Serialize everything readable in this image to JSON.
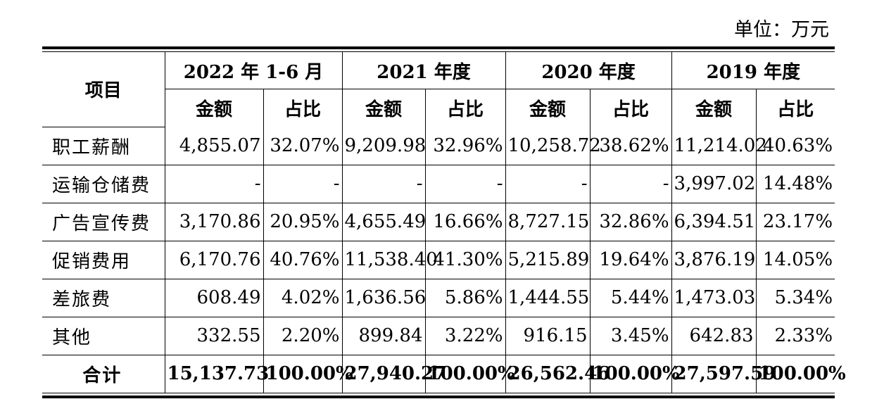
{
  "unit_label": "单位：万元",
  "header": {
    "item_label": "项目",
    "periods": [
      "2022 年 1-6 月",
      "2021 年度",
      "2020 年度",
      "2019 年度"
    ],
    "amount_label": "金额",
    "ratio_label": "占比"
  },
  "rows": [
    {
      "label": "职工薪酬",
      "values": [
        "4,855.07",
        "32.07%",
        "9,209.98",
        "32.96%",
        "10,258.72",
        "38.62%",
        "11,214.02",
        "40.63%"
      ]
    },
    {
      "label": "运输仓储费",
      "values": [
        "-",
        "-",
        "-",
        "-",
        "-",
        "-",
        "3,997.02",
        "14.48%"
      ]
    },
    {
      "label": "广告宣传费",
      "values": [
        "3,170.86",
        "20.95%",
        "4,655.49",
        "16.66%",
        "8,727.15",
        "32.86%",
        "6,394.51",
        "23.17%"
      ]
    },
    {
      "label": "促销费用",
      "values": [
        "6,170.76",
        "40.76%",
        "11,538.40",
        "41.30%",
        "5,215.89",
        "19.64%",
        "3,876.19",
        "14.05%"
      ]
    },
    {
      "label": "差旅费",
      "values": [
        "608.49",
        "4.02%",
        "1,636.56",
        "5.86%",
        "1,444.55",
        "5.44%",
        "1,473.03",
        "5.34%"
      ]
    },
    {
      "label": "其他",
      "values": [
        "332.55",
        "2.20%",
        "899.84",
        "3.22%",
        "916.15",
        "3.45%",
        "642.83",
        "2.33%"
      ]
    }
  ],
  "total": {
    "label": "合计",
    "values": [
      "15,137.73",
      "100.00%",
      "27,940.27",
      "100.00%",
      "26,562.46",
      "100.00%",
      "27,597.59",
      "100.00%"
    ]
  }
}
